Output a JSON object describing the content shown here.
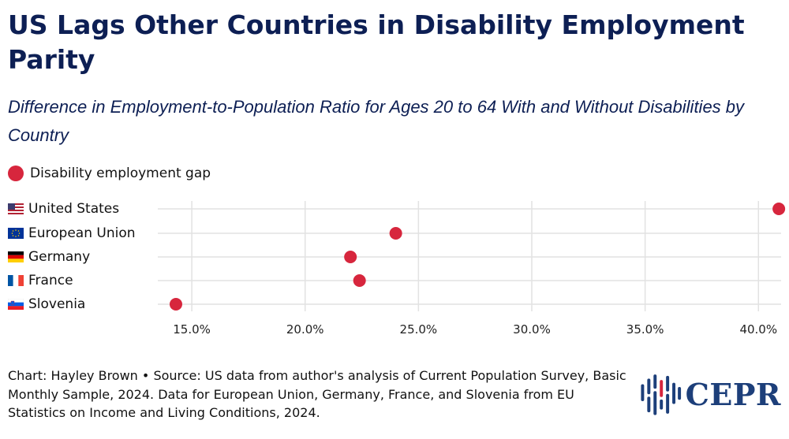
{
  "title": "US Lags Other Countries in Disability Employment Parity",
  "subtitle": "Difference in Employment-to-Population Ratio for Ages 20 to 64 With and Without Disabilities by Country",
  "legend": {
    "label": "Disability employment gap",
    "color": "#d7263d"
  },
  "footer": {
    "credit": "Chart: Hayley Brown",
    "separator": "•",
    "source": "Source: US data from author's analysis of Current Population Survey, Basic Monthly Sample, 2024. Data for European Union, Germany, France, and Slovenia from EU Statistics on Income and Living Conditions, 2024."
  },
  "logo": {
    "text": "CEPR",
    "color": "#1d3f7a"
  },
  "colors": {
    "point": "#d7263d",
    "grid": "#e2e2e2",
    "title": "#0d1f54"
  },
  "chart_data": {
    "type": "scatter",
    "title": "US Lags Other Countries in Disability Employment Parity",
    "subtitle": "Difference in Employment-to-Population Ratio for Ages 20 to 64 With and Without Disabilities by Country",
    "xlabel": "",
    "ylabel": "",
    "xlim": [
      13.5,
      41
    ],
    "x_ticks": [
      15,
      20,
      25,
      30,
      35,
      40
    ],
    "x_tick_labels": [
      "15.0%",
      "20.0%",
      "25.0%",
      "30.0%",
      "35.0%",
      "40.0%"
    ],
    "categories": [
      "United States",
      "European Union",
      "Germany",
      "France",
      "Slovenia"
    ],
    "flag_icons": [
      "us-flag-icon",
      "eu-flag-icon",
      "germany-flag-icon",
      "france-flag-icon",
      "slovenia-flag-icon"
    ],
    "series": [
      {
        "name": "Disability employment gap",
        "values": [
          40.9,
          24.0,
          22.0,
          22.4,
          14.3
        ]
      }
    ],
    "grid": true,
    "legend_position": "top-left"
  }
}
